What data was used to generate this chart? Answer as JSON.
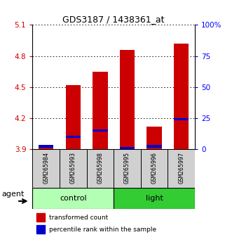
{
  "title": "GDS3187 / 1438361_at",
  "samples": [
    "GSM265984",
    "GSM265993",
    "GSM265998",
    "GSM265995",
    "GSM265996",
    "GSM265997"
  ],
  "red_values": [
    3.92,
    4.52,
    4.65,
    4.86,
    4.12,
    4.92
  ],
  "blue_values": [
    3.93,
    4.02,
    4.08,
    3.91,
    3.93,
    4.19
  ],
  "ylim": [
    3.9,
    5.1
  ],
  "yticks_left": [
    3.9,
    4.2,
    4.5,
    4.8,
    5.1
  ],
  "yticks_right": [
    0,
    25,
    50,
    75,
    100
  ],
  "ytick_labels_right": [
    "0",
    "25",
    "50",
    "75",
    "100%"
  ],
  "bar_bottom": 3.9,
  "red_color": "#cc0000",
  "blue_color": "#0000cc",
  "control_color": "#b3ffb3",
  "light_color": "#33cc33",
  "legend_red": "transformed count",
  "legend_blue": "percentile rank within the sample",
  "bar_width": 0.55,
  "title_fontsize": 9,
  "tick_fontsize": 7.5,
  "sample_fontsize": 6,
  "group_fontsize": 8,
  "legend_fontsize": 6.5,
  "agent_fontsize": 8
}
